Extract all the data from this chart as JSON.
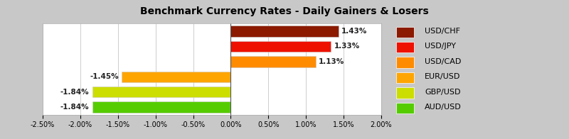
{
  "title": "Benchmark Currency Rates - Daily Gainers & Losers",
  "categories": [
    "USD/CHF",
    "USD/JPY",
    "USD/CAD",
    "EUR/USD",
    "GBP/USD",
    "AUD/USD"
  ],
  "values": [
    1.43,
    1.33,
    1.13,
    -1.45,
    -1.84,
    -1.84
  ],
  "bar_colors": [
    "#8B1A00",
    "#EE1100",
    "#FF8C00",
    "#FFA500",
    "#CCDD00",
    "#55CC00"
  ],
  "legend_colors": [
    "#8B1A00",
    "#EE1100",
    "#FF8C00",
    "#FFA500",
    "#CCDD00",
    "#55CC00"
  ],
  "labels": [
    "1.43%",
    "1.33%",
    "1.13%",
    "-1.45%",
    "-1.84%",
    "-1.84%"
  ],
  "xlim": [
    -2.5,
    2.0
  ],
  "xticks": [
    -2.5,
    -2.0,
    -1.5,
    -1.0,
    -0.5,
    0.0,
    0.5,
    1.0,
    1.5,
    2.0
  ],
  "xtick_labels": [
    "-2.50%",
    "-2.00%",
    "-1.50%",
    "-1.00%",
    "-0.50%",
    "0.00%",
    "0.50%",
    "1.00%",
    "1.50%",
    "2.00%"
  ],
  "title_bg_color": "#A9A9A9",
  "plot_bg_color": "#FFFFFF",
  "outer_bg_color": "#C8C8C8",
  "legend_bg_color": "#FFFFFF",
  "title_fontsize": 10,
  "bar_height": 0.72,
  "label_fontsize": 7.5,
  "tick_fontsize": 7,
  "legend_fontsize": 8
}
